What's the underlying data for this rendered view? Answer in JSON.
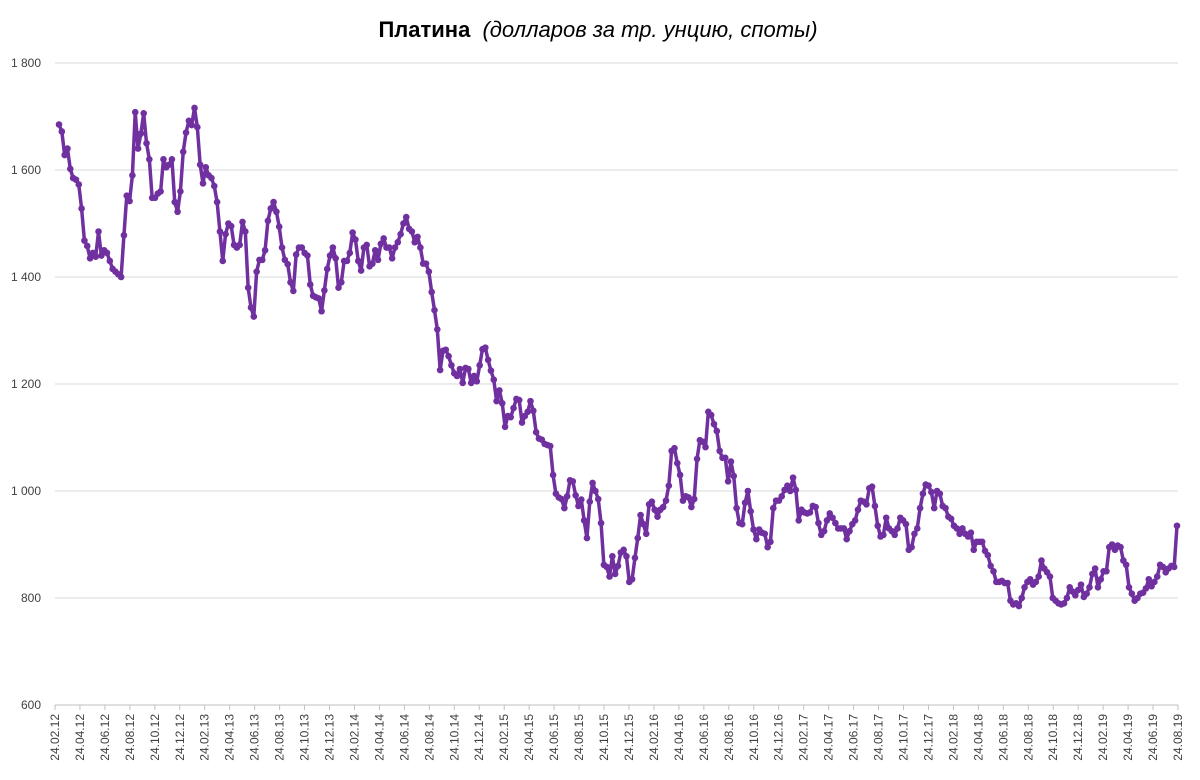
{
  "chart_data": {
    "type": "line",
    "title": "Платина",
    "subtitle": "(долларов за тр. унцию, споты)",
    "xlabel": "",
    "ylabel": "",
    "ylim": [
      600,
      1800
    ],
    "yticks": [
      600,
      800,
      1000,
      1200,
      1400,
      1600,
      1800
    ],
    "ytick_labels": [
      "600",
      "800",
      "1 000",
      "1 200",
      "1 400",
      "1 600",
      "1 800"
    ],
    "x_tick_labels": [
      "24.02.12",
      "24.04.12",
      "24.06.12",
      "24.08.12",
      "24.10.12",
      "24.12.12",
      "24.02.13",
      "24.04.13",
      "24.06.13",
      "24.08.13",
      "24.10.13",
      "24.12.13",
      "24.02.14",
      "24.04.14",
      "24.06.14",
      "24.08.14",
      "24.10.14",
      "24.12.14",
      "24.02.15",
      "24.04.15",
      "24.06.15",
      "24.08.15",
      "24.10.15",
      "24.12.15",
      "24.02.16",
      "24.04.16",
      "24.06.16",
      "24.08.16",
      "24.10.16",
      "24.12.16",
      "24.02.17",
      "24.04.17",
      "24.06.17",
      "24.08.17",
      "24.10.17",
      "24.12.17",
      "24.02.18",
      "24.04.18",
      "24.06.18",
      "24.08.18",
      "24.10.18",
      "24.12.18",
      "24.02.19",
      "24.04.19",
      "24.06.19",
      "24.08.19"
    ],
    "grid": "horizontal",
    "legend": "none",
    "line_color": "#7030a0",
    "series": [
      {
        "values": [
          1685,
          1672,
          1628,
          1640,
          1602,
          1585,
          1582,
          1573,
          1528,
          1468,
          1458,
          1435,
          1445,
          1438,
          1485,
          1440,
          1450,
          1445,
          1430,
          1415,
          1410,
          1405,
          1400,
          1478,
          1552,
          1542,
          1590,
          1708,
          1640,
          1668,
          1706,
          1650,
          1620,
          1548,
          1548,
          1556,
          1560,
          1620,
          1605,
          1610,
          1620,
          1540,
          1522,
          1560,
          1634,
          1670,
          1692,
          1684,
          1716,
          1680,
          1610,
          1575,
          1605,
          1590,
          1585,
          1570,
          1540,
          1485,
          1430,
          1480,
          1500,
          1495,
          1460,
          1455,
          1460,
          1503,
          1485,
          1380,
          1343,
          1326,
          1410,
          1432,
          1432,
          1450,
          1505,
          1528,
          1540,
          1522,
          1494,
          1455,
          1432,
          1424,
          1390,
          1374,
          1442,
          1455,
          1455,
          1445,
          1440,
          1386,
          1365,
          1362,
          1360,
          1336,
          1375,
          1415,
          1440,
          1455,
          1435,
          1380,
          1390,
          1430,
          1430,
          1445,
          1483,
          1470,
          1430,
          1412,
          1455,
          1460,
          1420,
          1425,
          1450,
          1432,
          1462,
          1472,
          1455,
          1455,
          1435,
          1455,
          1465,
          1480,
          1500,
          1512,
          1490,
          1485,
          1465,
          1475,
          1455,
          1425,
          1425,
          1410,
          1372,
          1338,
          1302,
          1226,
          1262,
          1264,
          1252,
          1235,
          1220,
          1215,
          1228,
          1202,
          1230,
          1228,
          1202,
          1215,
          1205,
          1235,
          1265,
          1268,
          1245,
          1225,
          1208,
          1168,
          1188,
          1164,
          1120,
          1140,
          1138,
          1155,
          1172,
          1170,
          1128,
          1140,
          1148,
          1168,
          1150,
          1110,
          1098,
          1096,
          1088,
          1086,
          1084,
          1030,
          995,
          988,
          985,
          968,
          990,
          1020,
          1018,
          992,
          972,
          984,
          945,
          912,
          980,
          1015,
          1000,
          985,
          940,
          862,
          858,
          840,
          878,
          845,
          860,
          885,
          890,
          878,
          830,
          835,
          875,
          912,
          955,
          938,
          920,
          975,
          980,
          965,
          952,
          965,
          970,
          982,
          1010,
          1075,
          1080,
          1052,
          1030,
          982,
          990,
          988,
          970,
          985,
          1060,
          1095,
          1092,
          1082,
          1148,
          1142,
          1125,
          1112,
          1075,
          1062,
          1062,
          1018,
          1055,
          1028,
          968,
          940,
          938,
          978,
          1000,
          962,
          928,
          910,
          928,
          922,
          920,
          895,
          905,
          968,
          982,
          982,
          990,
          1002,
          1010,
          1000,
          1025,
          1002,
          945,
          965,
          960,
          958,
          960,
          972,
          970,
          940,
          918,
          925,
          945,
          958,
          950,
          940,
          930,
          930,
          930,
          910,
          925,
          938,
          945,
          965,
          982,
          980,
          975,
          1005,
          1008,
          972,
          935,
          915,
          918,
          950,
          930,
          925,
          918,
          930,
          950,
          945,
          938,
          890,
          895,
          920,
          930,
          968,
          995,
          1012,
          1010,
          998,
          968,
          1000,
          995,
          972,
          968,
          952,
          948,
          935,
          930,
          920,
          930,
          920,
          915,
          922,
          890,
          905,
          905,
          905,
          888,
          880,
          860,
          850,
          830,
          830,
          832,
          828,
          828,
          795,
          788,
          790,
          785,
          800,
          820,
          830,
          835,
          825,
          830,
          840,
          870,
          855,
          848,
          840,
          800,
          795,
          790,
          788,
          790,
          800,
          820,
          812,
          805,
          815,
          825,
          802,
          808,
          820,
          845,
          855,
          820,
          835,
          850,
          850,
          895,
          900,
          890,
          898,
          895,
          870,
          862,
          820,
          808,
          795,
          800,
          808,
          810,
          818,
          835,
          822,
          830,
          840,
          862,
          858,
          848,
          855,
          860,
          858,
          935
        ]
      }
    ]
  }
}
